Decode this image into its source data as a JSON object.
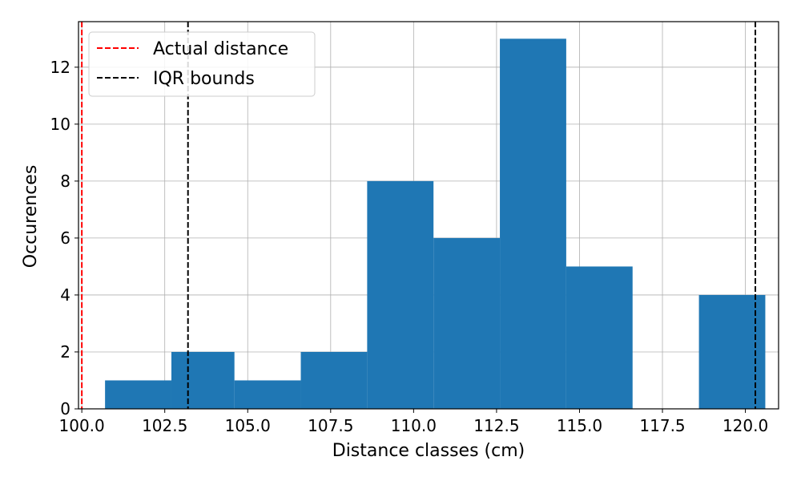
{
  "chart_data": {
    "type": "histogram",
    "title": "",
    "xlabel": "Distance classes (cm)",
    "ylabel": "Occurences",
    "xlim": [
      99.9,
      121.0
    ],
    "ylim": [
      0,
      13.6
    ],
    "grid": true,
    "bar_color": "#1f77b4",
    "bins": [
      {
        "x0": 100.7,
        "x1": 102.7,
        "count": 1
      },
      {
        "x0": 102.7,
        "x1": 104.6,
        "count": 2
      },
      {
        "x0": 104.6,
        "x1": 106.6,
        "count": 1
      },
      {
        "x0": 106.6,
        "x1": 108.6,
        "count": 2
      },
      {
        "x0": 108.6,
        "x1": 110.6,
        "count": 8
      },
      {
        "x0": 110.6,
        "x1": 112.6,
        "count": 6
      },
      {
        "x0": 112.6,
        "x1": 114.6,
        "count": 13
      },
      {
        "x0": 114.6,
        "x1": 116.6,
        "count": 5
      },
      {
        "x0": 116.6,
        "x1": 118.6,
        "count": 0
      },
      {
        "x0": 118.6,
        "x1": 120.6,
        "count": 4
      }
    ],
    "xticks": [
      100.0,
      102.5,
      105.0,
      107.5,
      110.0,
      112.5,
      115.0,
      117.5,
      120.0
    ],
    "yticks": [
      0,
      2,
      4,
      6,
      8,
      10,
      12
    ],
    "vlines": [
      {
        "name": "Actual distance",
        "x": 100.0,
        "color": "#ff0000",
        "style": "dashed"
      },
      {
        "name": "IQR bounds",
        "x": 103.2,
        "color": "#000000",
        "style": "dashed"
      },
      {
        "name": "IQR bounds",
        "x": 120.3,
        "color": "#000000",
        "style": "dashed"
      }
    ],
    "legend": {
      "placement": "top-left",
      "entries": [
        {
          "label": "Actual distance",
          "color": "#ff0000"
        },
        {
          "label": "IQR bounds",
          "color": "#000000"
        }
      ]
    }
  }
}
